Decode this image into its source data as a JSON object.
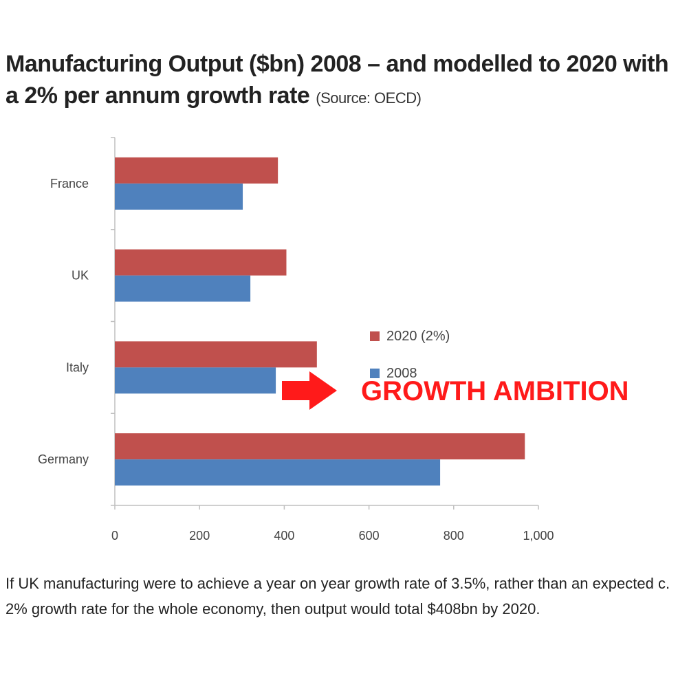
{
  "header": {
    "title": "Manufacturing Output ($bn) 2008 – and modelled to 2020 with a 2% per annum growth rate",
    "source": "(Source: OECD)"
  },
  "annotation": {
    "text": "GROWTH AMBITION",
    "color": "#ff1a1a",
    "icon": "arrow-right-icon"
  },
  "caption": "If UK manufacturing were to achieve a year on year growth rate of 3.5%, rather than an expected c. 2% growth rate for the whole economy, then output would total $408bn by 2020.",
  "chart_data": {
    "type": "bar",
    "orientation": "horizontal",
    "categories": [
      "France",
      "UK",
      "Italy",
      "Germany"
    ],
    "series": [
      {
        "name": "2020 (2%)",
        "color": "#c0504d",
        "values": [
          385,
          405,
          477,
          968
        ]
      },
      {
        "name": "2008",
        "color": "#4f81bd",
        "values": [
          302,
          320,
          380,
          768
        ]
      }
    ],
    "xlim": [
      0,
      1000
    ],
    "xticks": [
      0,
      200,
      400,
      600,
      800,
      1000
    ],
    "xtick_labels": [
      "0",
      "200",
      "400",
      "600",
      "800",
      "1,000"
    ],
    "legend_position": "center-right",
    "grid": false
  }
}
